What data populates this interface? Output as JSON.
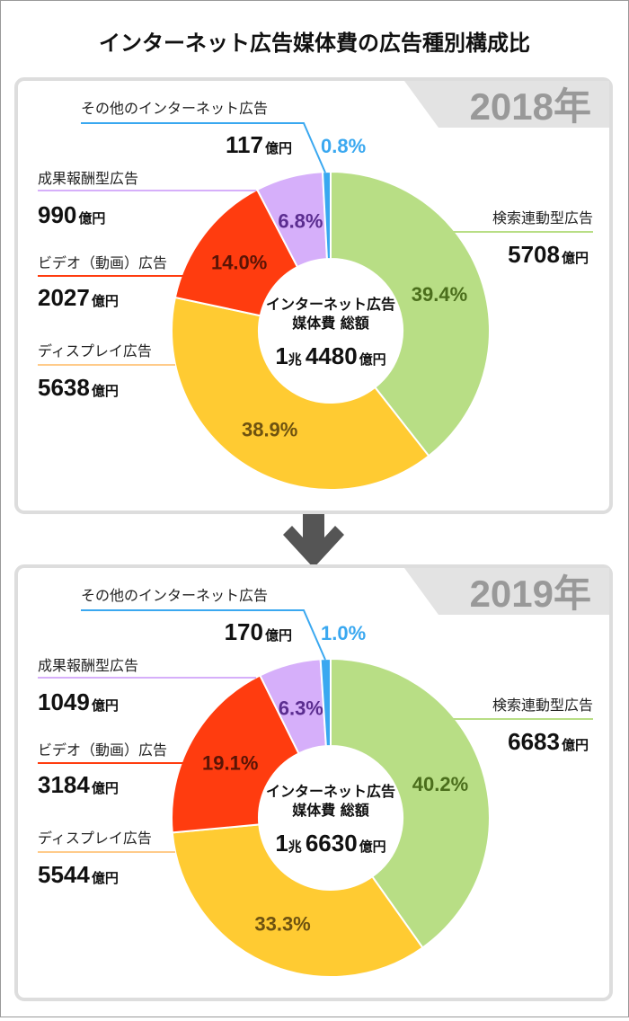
{
  "title": "インターネット広告媒体費の広告種別構成比",
  "value_unit": "億円",
  "center_label_line1": "インターネット広告",
  "center_label_line2": "媒体費 総額",
  "categories": [
    "検索連動型広告",
    "ディスプレイ広告",
    "ビデオ（動画）広告",
    "成果報酬型広告",
    "その他のインターネット広告"
  ],
  "colors": [
    "#b8de85",
    "#ffcb32",
    "#ff3c0f",
    "#d6affa",
    "#3aa8f0"
  ],
  "pct_colors": [
    "#4b6e1c",
    "#6e5210",
    "#5a1405",
    "#5b2d90",
    "#3aa8f0"
  ],
  "line_colors": [
    "#b8de85",
    "#ffcb8a",
    "#ff3c0f",
    "#d6affa",
    "#3aa8f0"
  ],
  "chart_data": [
    {
      "type": "pie",
      "year_label": "2018年",
      "total_label": {
        "cho": "1",
        "cho_unit": "兆",
        "rest": "4480",
        "unit": "億円"
      },
      "values": [
        5708,
        5638,
        2027,
        990,
        117
      ],
      "percents": [
        "39.4%",
        "38.9%",
        "14.0%",
        "6.8%",
        "0.8%"
      ]
    },
    {
      "type": "pie",
      "year_label": "2019年",
      "total_label": {
        "cho": "1",
        "cho_unit": "兆",
        "rest": "6630",
        "unit": "億円"
      },
      "values": [
        6683,
        5544,
        3184,
        1049,
        170
      ],
      "percents": [
        "40.2%",
        "33.3%",
        "19.1%",
        "6.3%",
        "1.0%"
      ]
    }
  ]
}
